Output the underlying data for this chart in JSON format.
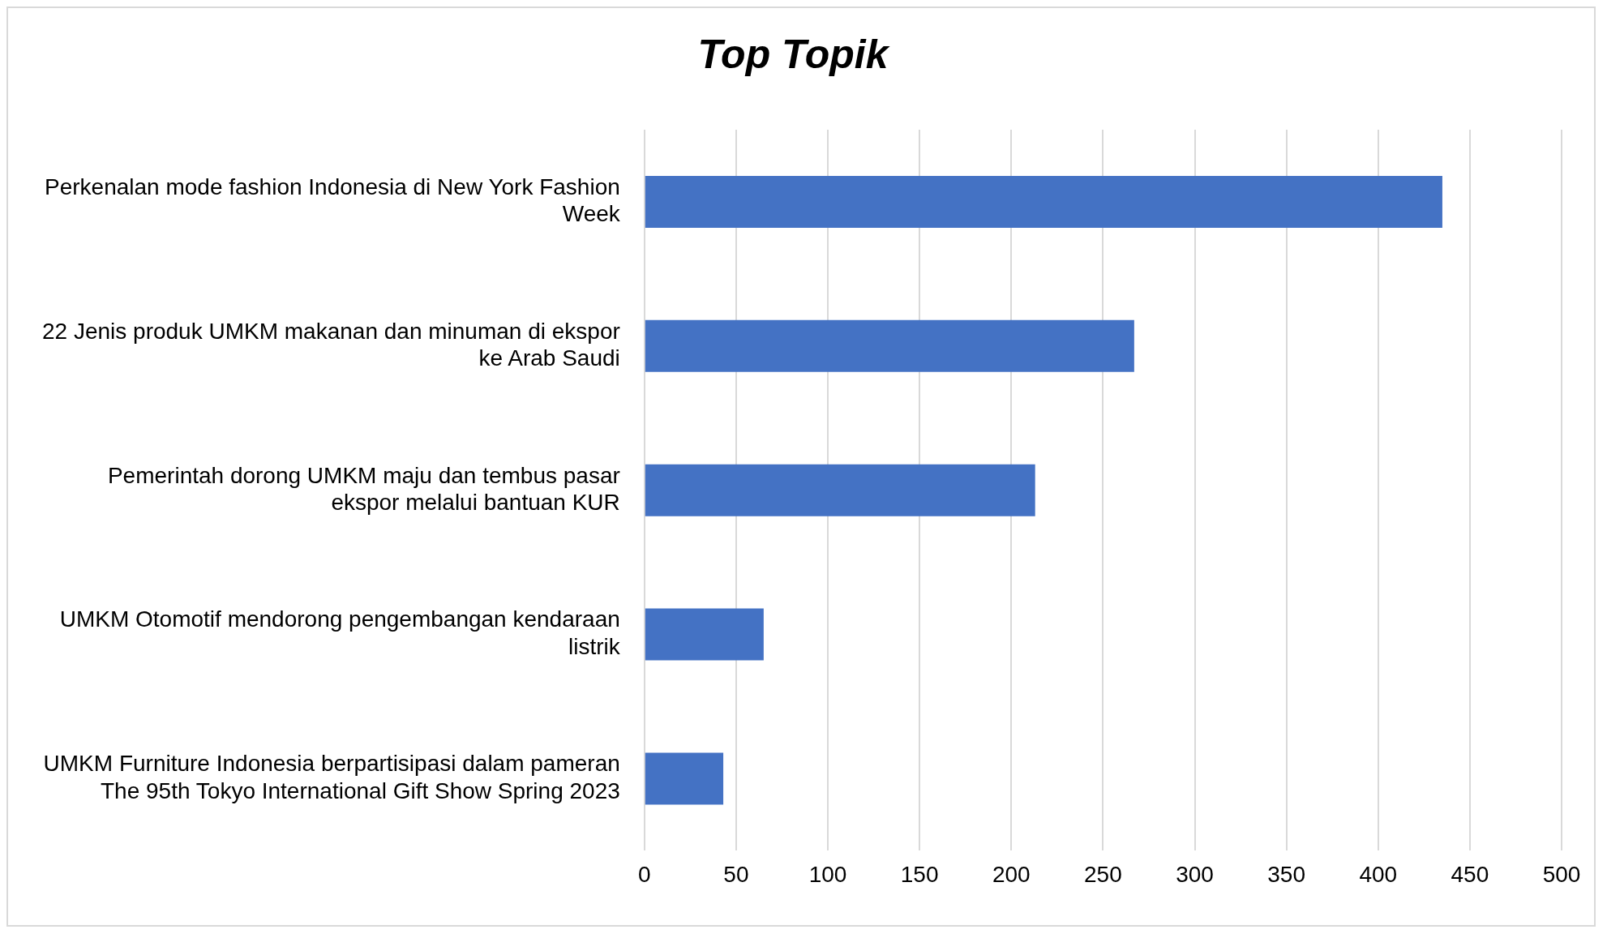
{
  "chart_data": {
    "type": "bar",
    "orientation": "horizontal",
    "title": "Top Topik",
    "categories": [
      "Perkenalan mode fashion Indonesia di New York Fashion Week",
      "22 Jenis produk UMKM makanan dan minuman di ekspor ke Arab Saudi",
      "Pemerintah dorong UMKM maju dan tembus pasar ekspor melalui bantuan KUR",
      "UMKM Otomotif mendorong pengembangan kendaraan listrik",
      "UMKM Furniture Indonesia berpartisipasi dalam pameran The 95th Tokyo International Gift Show Spring 2023"
    ],
    "values": [
      435,
      267,
      213,
      65,
      43
    ],
    "color": "#4472c4",
    "xlim": [
      0,
      500
    ],
    "xticks": [
      0,
      50,
      100,
      150,
      200,
      250,
      300,
      350,
      400,
      450,
      500
    ],
    "grid": "x",
    "legend": false
  }
}
